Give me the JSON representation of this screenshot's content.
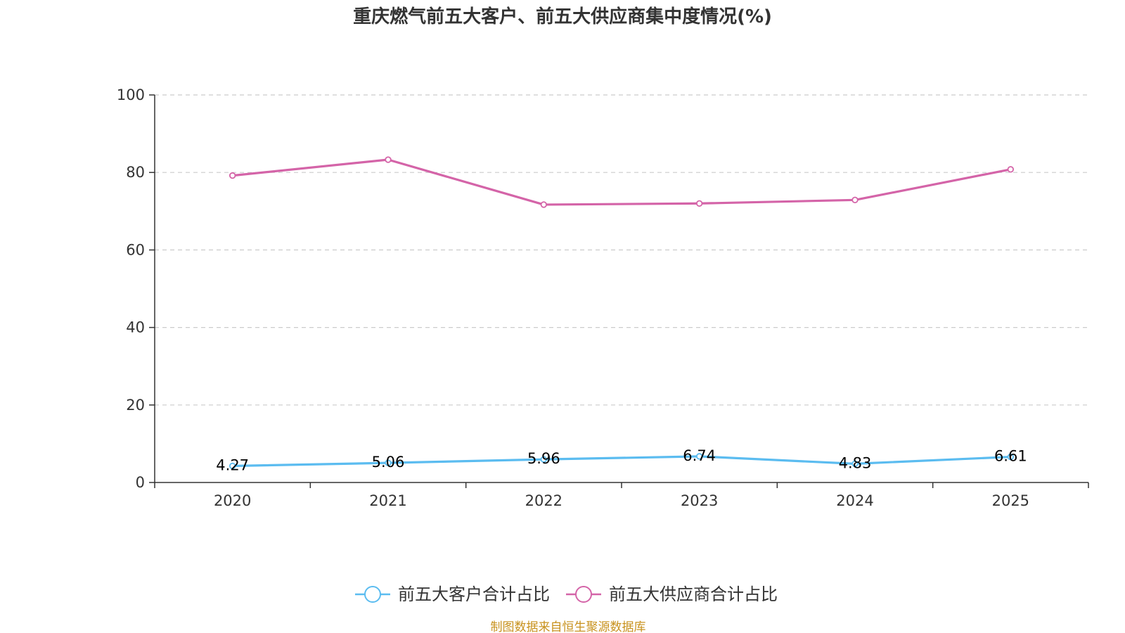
{
  "colors": {
    "series1": "#5bbcf0",
    "series2": "#d464a8",
    "axis": "#333333",
    "grid": "#cccccc",
    "source": "#c8921e"
  },
  "chart_data": {
    "type": "line",
    "title": "重庆燃气前五大客户、前五大供应商集中度情况(%)",
    "categories": [
      "2020",
      "2021",
      "2022",
      "2023",
      "2024",
      "2025"
    ],
    "ylim": [
      0,
      100
    ],
    "yticks": [
      "0",
      "20",
      "40",
      "60",
      "80",
      "100"
    ],
    "grid": true,
    "legend_position": "bottom",
    "series": [
      {
        "name": "前五大客户合计占比",
        "values": [
          4.27,
          5.06,
          5.96,
          6.74,
          4.83,
          6.61
        ],
        "labels": [
          "4.27",
          "5.06",
          "5.96",
          "6.74",
          "4.83",
          "6.61"
        ],
        "show_labels": true
      },
      {
        "name": "前五大供应商合计占比",
        "values": [
          79.2,
          83.3,
          71.7,
          72.0,
          72.9,
          80.8
        ],
        "show_labels": false
      }
    ]
  },
  "footer": {
    "source": "制图数据来自恒生聚源数据库"
  }
}
